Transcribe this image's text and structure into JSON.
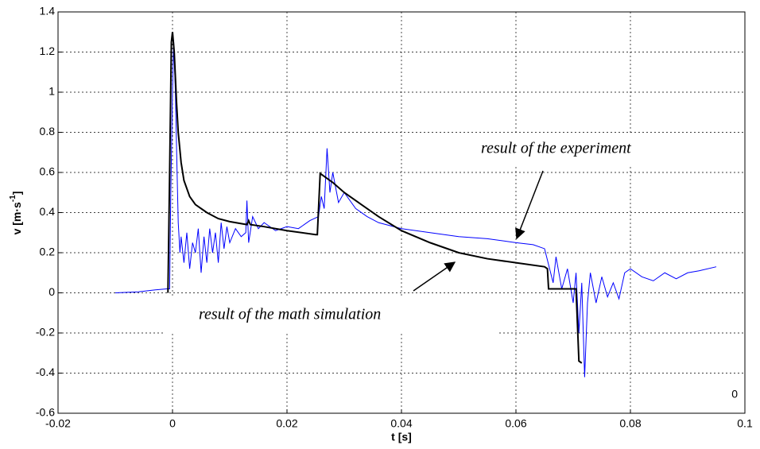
{
  "chart_data": {
    "type": "line",
    "xlabel": "t [s]",
    "ylabel": {
      "main": "v [m·s",
      "sup": "-1",
      "end": "]"
    },
    "corner_label": "0",
    "xlim": [
      -0.02,
      0.1
    ],
    "xticks": [
      -0.02,
      0,
      0.02,
      0.04,
      0.06,
      0.08,
      0.1
    ],
    "ylim": [
      -0.6,
      1.4
    ],
    "yticks": [
      -0.6,
      -0.4,
      -0.2,
      0,
      0.2,
      0.4,
      0.6,
      0.8,
      1,
      1.2,
      1.4
    ],
    "grid": true,
    "series": [
      {
        "name": "result of the experiment",
        "color": "#0000ff",
        "x": [
          -0.01,
          -0.006,
          -0.003,
          -0.001,
          -0.0005,
          -0.0003,
          0,
          0.0002,
          0.0005,
          0.0008,
          0.001,
          0.0013,
          0.0015,
          0.002,
          0.0025,
          0.003,
          0.0035,
          0.004,
          0.0045,
          0.005,
          0.0055,
          0.006,
          0.0065,
          0.007,
          0.0075,
          0.008,
          0.0085,
          0.009,
          0.0095,
          0.01,
          0.011,
          0.012,
          0.0128,
          0.013,
          0.0133,
          0.014,
          0.015,
          0.016,
          0.018,
          0.02,
          0.022,
          0.024,
          0.0255,
          0.026,
          0.0265,
          0.027,
          0.0275,
          0.028,
          0.029,
          0.03,
          0.032,
          0.034,
          0.036,
          0.04,
          0.045,
          0.05,
          0.055,
          0.06,
          0.063,
          0.065,
          0.0665,
          0.067,
          0.068,
          0.069,
          0.07,
          0.0705,
          0.071,
          0.0715,
          0.072,
          0.0725,
          0.073,
          0.074,
          0.075,
          0.076,
          0.077,
          0.078,
          0.079,
          0.08,
          0.082,
          0.084,
          0.086,
          0.088,
          0.09,
          0.092,
          0.095
        ],
        "values": [
          0,
          0.005,
          0.015,
          0.02,
          0.02,
          0.5,
          1.0,
          1.26,
          1.0,
          0.6,
          0.35,
          0.2,
          0.28,
          0.15,
          0.3,
          0.12,
          0.25,
          0.2,
          0.32,
          0.1,
          0.28,
          0.15,
          0.32,
          0.2,
          0.3,
          0.15,
          0.35,
          0.22,
          0.33,
          0.25,
          0.32,
          0.28,
          0.3,
          0.46,
          0.25,
          0.38,
          0.32,
          0.35,
          0.31,
          0.33,
          0.32,
          0.36,
          0.38,
          0.48,
          0.42,
          0.72,
          0.5,
          0.6,
          0.45,
          0.5,
          0.42,
          0.38,
          0.35,
          0.32,
          0.3,
          0.28,
          0.27,
          0.25,
          0.24,
          0.22,
          0.05,
          0.18,
          0.02,
          0.12,
          -0.05,
          0.1,
          -0.2,
          0.05,
          -0.42,
          -0.05,
          0.1,
          -0.05,
          0.08,
          -0.02,
          0.05,
          -0.03,
          0.1,
          0.12,
          0.08,
          0.06,
          0.1,
          0.07,
          0.1,
          0.11,
          0.13
        ]
      },
      {
        "name": "result of the math simulation",
        "color": "#000000",
        "x": [
          -0.0008,
          -0.0005,
          -0.0002,
          0,
          0.0003,
          0.0007,
          0.001,
          0.0015,
          0.002,
          0.003,
          0.004,
          0.006,
          0.008,
          0.01,
          0.013,
          0.0133,
          0.0136,
          0.016,
          0.02,
          0.025,
          0.0253,
          0.0258,
          0.028,
          0.03,
          0.033,
          0.036,
          0.04,
          0.045,
          0.05,
          0.055,
          0.06,
          0.065,
          0.0655,
          0.0657,
          0.07,
          0.0705,
          0.071,
          0.0715
        ],
        "values": [
          0,
          0.6,
          1.25,
          1.3,
          1.2,
          0.95,
          0.8,
          0.65,
          0.56,
          0.48,
          0.44,
          0.4,
          0.37,
          0.355,
          0.34,
          0.36,
          0.34,
          0.33,
          0.31,
          0.29,
          0.29,
          0.595,
          0.55,
          0.5,
          0.44,
          0.38,
          0.31,
          0.25,
          0.2,
          0.17,
          0.15,
          0.13,
          0.12,
          0.02,
          0.02,
          0.02,
          -0.34,
          -0.35
        ]
      }
    ]
  }
}
